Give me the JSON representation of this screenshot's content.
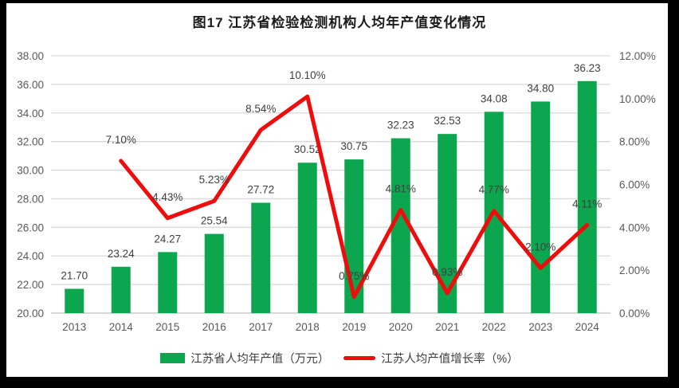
{
  "title": "图17  江苏省检验检测机构人均年产值变化情况",
  "chart_data": {
    "type": "bar+line-combo",
    "categories": [
      "2013",
      "2014",
      "2015",
      "2016",
      "2017",
      "2018",
      "2019",
      "2020",
      "2021",
      "2022",
      "2023",
      "2024"
    ],
    "series": [
      {
        "name": "江苏省人均年产值（万元）",
        "type": "bar",
        "axis": "left",
        "color": "#0ca64f",
        "values": [
          21.7,
          23.24,
          24.27,
          25.54,
          27.72,
          30.52,
          30.75,
          32.23,
          32.53,
          34.08,
          34.8,
          36.23
        ],
        "labels": [
          "21.70",
          "23.24",
          "24.27",
          "25.54",
          "27.72",
          "30.52",
          "30.75",
          "32.23",
          "32.53",
          "34.08",
          "34.80",
          "36.23"
        ]
      },
      {
        "name": "江苏人均产值增长率（%）",
        "type": "line",
        "axis": "right",
        "color": "#ef0c0c",
        "values": [
          null,
          7.1,
          4.43,
          5.23,
          8.54,
          10.1,
          0.75,
          4.81,
          0.93,
          4.77,
          2.1,
          4.11
        ],
        "labels": [
          null,
          "7.10%",
          "4.43%",
          "5.23%",
          "8.54%",
          "10.10%",
          "0.75%",
          "4.81%",
          "0.93%",
          "4.77%",
          "2.10%",
          "4.11%"
        ]
      }
    ],
    "left_axis": {
      "min": 20,
      "max": 38,
      "step": 2,
      "ticks": [
        "38.00",
        "36.00",
        "34.00",
        "32.00",
        "30.00",
        "28.00",
        "26.00",
        "24.00",
        "22.00",
        "20.00"
      ]
    },
    "right_axis": {
      "min": 0,
      "max": 12,
      "step": 2,
      "ticks": [
        "12.00%",
        "10.00%",
        "8.00%",
        "6.00%",
        "4.00%",
        "2.00%",
        "0.00%"
      ]
    },
    "grid": true,
    "legend_position": "bottom",
    "colors": {
      "grid": "#d9d9d9",
      "axis_line": "#bfbfbf",
      "axis_text": "#595959",
      "data_label_text": "#3f3f3f"
    }
  },
  "legend": {
    "bar_label": "江苏省人均年产值（万元）",
    "line_label": "江苏人均产值增长率（%）"
  }
}
